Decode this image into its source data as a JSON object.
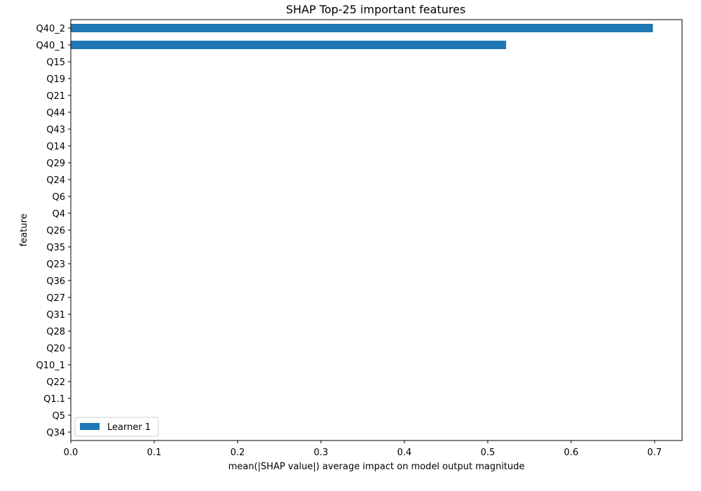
{
  "chart_data": {
    "type": "bar",
    "orientation": "horizontal",
    "title": "SHAP Top-25 important features",
    "xlabel": "mean(|SHAP value|) average impact on model output magnitude",
    "ylabel": "feature",
    "xlim": [
      0,
      0.733
    ],
    "xticks": [
      0.0,
      0.1,
      0.2,
      0.3,
      0.4,
      0.5,
      0.6,
      0.7
    ],
    "xtick_labels": [
      "0.0",
      "0.1",
      "0.2",
      "0.3",
      "0.4",
      "0.5",
      "0.6",
      "0.7"
    ],
    "categories": [
      "Q40_2",
      "Q40_1",
      "Q15",
      "Q19",
      "Q21",
      "Q44",
      "Q43",
      "Q14",
      "Q29",
      "Q24",
      "Q6",
      "Q4",
      "Q26",
      "Q35",
      "Q23",
      "Q36",
      "Q27",
      "Q31",
      "Q28",
      "Q20",
      "Q10_1",
      "Q22",
      "Q1.1",
      "Q5",
      "Q34"
    ],
    "series": [
      {
        "name": "Learner 1",
        "color": "#1f77b4",
        "values": [
          0.698,
          0.522,
          0,
          0,
          0,
          0,
          0,
          0,
          0,
          0,
          0,
          0,
          0,
          0,
          0,
          0,
          0,
          0,
          0,
          0,
          0,
          0,
          0,
          0,
          0
        ]
      }
    ],
    "legend": {
      "position": "lower-left",
      "entries": [
        "Learner 1"
      ]
    },
    "grid": false
  }
}
